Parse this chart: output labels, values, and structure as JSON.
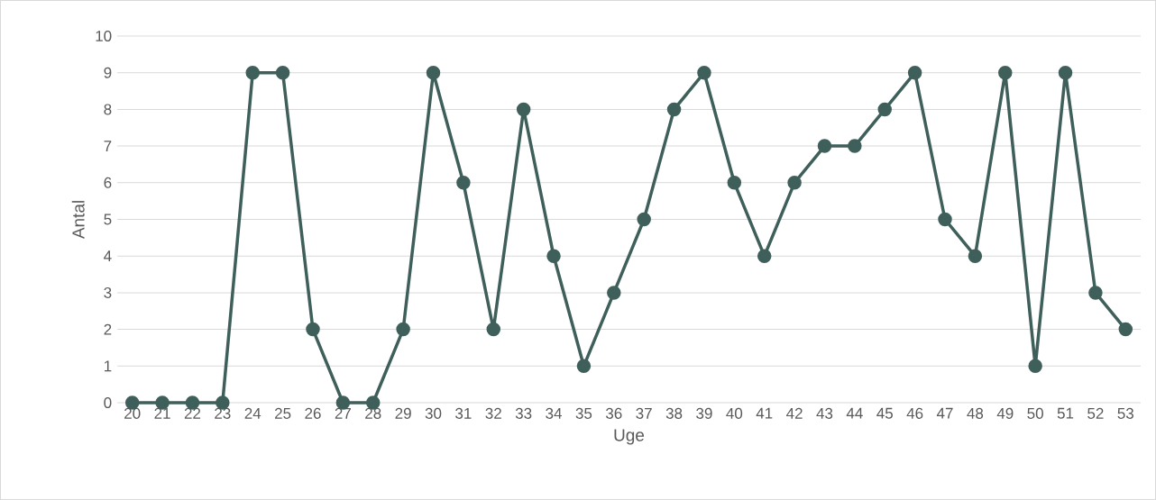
{
  "chart_data": {
    "type": "line",
    "xlabel": "Uge",
    "ylabel": "Antal",
    "categories": [
      "20",
      "21",
      "22",
      "23",
      "24",
      "25",
      "26",
      "27",
      "28",
      "29",
      "30",
      "31",
      "32",
      "33",
      "34",
      "35",
      "36",
      "37",
      "38",
      "39",
      "40",
      "41",
      "42",
      "43",
      "44",
      "45",
      "46",
      "47",
      "48",
      "49",
      "50",
      "51",
      "52",
      "53"
    ],
    "series": [
      {
        "color": "#3f5f5b",
        "values": [
          0,
          0,
          0,
          0,
          9,
          9,
          2,
          0,
          0,
          2,
          9,
          6,
          2,
          8,
          4,
          1,
          3,
          5,
          8,
          9,
          6,
          4,
          6,
          7,
          7,
          8,
          9,
          5,
          4,
          9,
          1,
          9,
          3,
          2
        ]
      }
    ],
    "ylim": [
      0,
      10
    ],
    "yticks": [
      0,
      1,
      2,
      3,
      4,
      5,
      6,
      7,
      8,
      9,
      10
    ],
    "grid": "y",
    "marker": "circle",
    "line_style": "solid",
    "legend": false
  }
}
